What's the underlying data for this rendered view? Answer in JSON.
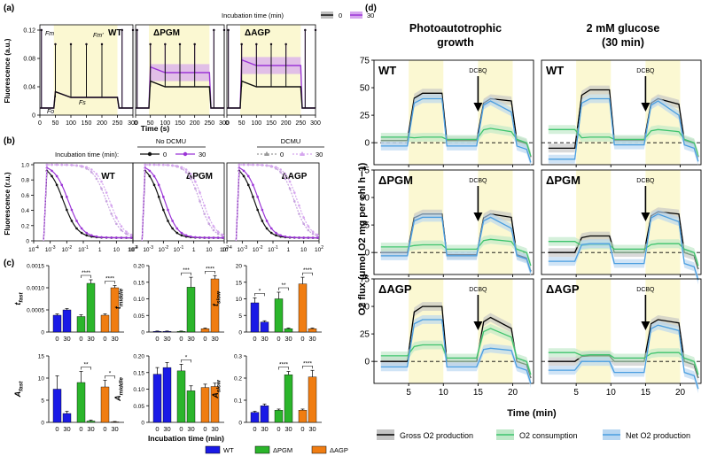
{
  "panel_labels": {
    "a": "(a)",
    "b": "(b)",
    "c": "(c)",
    "d": "(d)"
  },
  "strains": [
    "WT",
    "ΔPGM",
    "ΔAGP"
  ],
  "colors": {
    "black": "#111111",
    "purple": "#9b35d6",
    "purple_light": "#d6a6ef",
    "yellow": "#fbf8d2",
    "gray_band": "#bdbdbd",
    "WT": "#1a1ae6",
    "ΔPGM": "#2bb52b",
    "ΔAGP": "#f07d12",
    "green": "#3ec46d",
    "blue": "#4a9ee0"
  },
  "panel_a": {
    "ylabel": "Fluorescence (a.u.)",
    "xlabel": "Time (s)",
    "yticks": [
      "0",
      "0.04",
      "0.08",
      "0.12"
    ],
    "xticks": [
      "0",
      "50",
      "100",
      "150",
      "200",
      "250",
      "300"
    ],
    "legend_title": "Incubation time (min)",
    "legend_items": [
      "0",
      "30"
    ],
    "annotations": {
      "fm": "Fm",
      "fmp": "Fm′",
      "fo": "Fo",
      "fs": "Fs"
    },
    "chart_data": {
      "type": "line",
      "x_range": [
        0,
        300
      ],
      "y_range": [
        0,
        0.12
      ],
      "light_period": [
        45,
        250
      ],
      "pulse_times": [
        5,
        50,
        100,
        150,
        200,
        265,
        300
      ],
      "series": [
        {
          "name": "0",
          "strain": "WT",
          "fo": 0.01,
          "fm": 0.12,
          "fs": 0.025
        },
        {
          "name": "30",
          "strain": "WT",
          "fo": 0.01,
          "fm": 0.12,
          "fs": 0.025
        },
        {
          "name": "0",
          "strain": "ΔPGM",
          "fo": 0.01,
          "fm": 0.12,
          "fs": 0.04
        },
        {
          "name": "30",
          "strain": "ΔPGM",
          "fo": 0.01,
          "fm": 0.12,
          "fs": 0.06
        },
        {
          "name": "0",
          "strain": "ΔAGP",
          "fo": 0.01,
          "fm": 0.12,
          "fs": 0.04
        },
        {
          "name": "30",
          "strain": "ΔAGP",
          "fo": 0.01,
          "fm": 0.12,
          "fs": 0.07
        }
      ]
    }
  },
  "panel_b": {
    "ylabel": "Fluorescence (r.u.)",
    "yticks": [
      "0",
      "0.2",
      "0.4",
      "0.6",
      "0.8",
      "1.0"
    ],
    "xticks": [
      "10-4",
      "10-3",
      "10-2",
      "10-1",
      "1",
      "10",
      "102"
    ],
    "legend_title": "Incubation time (min):",
    "legend_group1": "No DCMU",
    "legend_group2": "DCMU",
    "legend_items": [
      "0",
      "30",
      "0",
      "30"
    ],
    "chart_data": {
      "type": "line",
      "x_scale": "log",
      "x_range_log10": [
        -4,
        2
      ],
      "y_range": [
        0,
        1
      ],
      "series": [
        {
          "name": "No DCMU 0",
          "half_time_log10": -2.2
        },
        {
          "name": "No DCMU 30",
          "half_time_log10": -1.9
        },
        {
          "name": "DCMU 0",
          "half_time_log10": 0.4
        },
        {
          "name": "DCMU 30",
          "half_time_log10": 0.6
        }
      ]
    }
  },
  "panel_c": {
    "xlabel": "Incubation time (min)",
    "ticks": [
      "0",
      "30"
    ],
    "legend_items": [
      "WT",
      "ΔPGM",
      "ΔAGP"
    ],
    "chart_data": [
      {
        "type": "bar",
        "ylabel": "tfast (s)",
        "ylab_main": "t",
        "ylab_sub": "fast",
        "ylim": [
          0,
          0.0015
        ],
        "yticks": [
          "0",
          "0.0005",
          "0.0010",
          "0.0015"
        ],
        "values": [
          0.00038,
          0.0005,
          0.00035,
          0.0011,
          0.00038,
          0.001
        ],
        "errors": [
          3e-05,
          3e-05,
          4e-05,
          8e-05,
          3e-05,
          5e-05
        ],
        "sig": [
          {
            "pair": 1,
            "label": "****"
          },
          {
            "pair": 2,
            "label": "****"
          }
        ]
      },
      {
        "type": "bar",
        "ylabel": "tmiddle (s)",
        "ylab_main": "t",
        "ylab_sub": "middle",
        "ylim": [
          0,
          0.2
        ],
        "yticks": [
          "0",
          "0.05",
          "0.10",
          "0.15",
          "0.20"
        ],
        "values": [
          0.002,
          0.002,
          0.002,
          0.135,
          0.01,
          0.16
        ],
        "errors": [
          0.001,
          0.001,
          0.001,
          0.03,
          0.002,
          0.01
        ],
        "sig": [
          {
            "pair": 1,
            "label": "***"
          },
          {
            "pair": 2,
            "label": "****"
          }
        ]
      },
      {
        "type": "bar",
        "ylabel": "tslow (s)",
        "ylab_main": "t",
        "ylab_sub": "slow",
        "ylim": [
          0,
          20
        ],
        "yticks": [
          "0",
          "5",
          "10",
          "15",
          "20"
        ],
        "values": [
          8.8,
          3.0,
          10.0,
          1.0,
          14.5,
          1.0
        ],
        "errors": [
          1.5,
          0.4,
          2.0,
          0.2,
          2.0,
          0.2
        ],
        "sig": [
          {
            "pair": 0,
            "label": "*"
          },
          {
            "pair": 1,
            "label": "**"
          },
          {
            "pair": 2,
            "label": "****"
          }
        ]
      },
      {
        "type": "bar",
        "ylabel": "Afast (s)",
        "ylab_main": "A",
        "ylab_sub": "fast",
        "ylim": [
          0,
          15
        ],
        "yticks": [
          "0",
          "5",
          "10",
          "15"
        ],
        "values": [
          7.5,
          2.0,
          9.0,
          0.3,
          8.0,
          0.1
        ],
        "errors": [
          3.0,
          0.5,
          2.5,
          0.2,
          1.5,
          0.1
        ],
        "sig": [
          {
            "pair": 1,
            "label": "**"
          },
          {
            "pair": 2,
            "label": "*"
          }
        ]
      },
      {
        "type": "bar",
        "ylabel": "Amiddle (s)",
        "ylab_main": "A",
        "ylab_sub": "middle",
        "ylim": [
          0,
          0.2
        ],
        "yticks": [
          "0",
          "0.05",
          "0.10",
          "0.15",
          "0.20"
        ],
        "values": [
          0.145,
          0.165,
          0.155,
          0.095,
          0.105,
          0.108
        ],
        "errors": [
          0.02,
          0.015,
          0.02,
          0.015,
          0.01,
          0.01
        ],
        "sig": [
          {
            "pair": 1,
            "label": "*"
          }
        ]
      },
      {
        "type": "bar",
        "ylabel": "Aslow (s)",
        "ylab_main": "A",
        "ylab_sub": "slow",
        "ylim": [
          0,
          0.3
        ],
        "yticks": [
          "0",
          "0.1",
          "0.2",
          "0.3"
        ],
        "values": [
          0.045,
          0.075,
          0.055,
          0.215,
          0.055,
          0.205
        ],
        "errors": [
          0.005,
          0.008,
          0.005,
          0.015,
          0.005,
          0.03
        ],
        "sig": [
          {
            "pair": 1,
            "label": "****"
          },
          {
            "pair": 2,
            "label": "****"
          }
        ]
      }
    ]
  },
  "panel_d": {
    "col_titles": [
      [
        "Photoautotrophic",
        "growth"
      ],
      [
        "2 mM glucose",
        "(30 min)"
      ]
    ],
    "ylabel": "O2 flux (μmol O2 mg per chl h−1)",
    "xlabel": "Time (min)",
    "xticks": [
      "5",
      "10",
      "15",
      "20"
    ],
    "yticks": [
      "0",
      "25",
      "50",
      "75"
    ],
    "dcbq": "DCBQ",
    "legend_items": [
      "Gross O2 production",
      "O2 consumption",
      "Net O2 production"
    ],
    "chart_data": {
      "type": "line",
      "x_range": [
        0,
        23
      ],
      "y_range": [
        -20,
        75
      ],
      "light_periods": [
        [
          5,
          10
        ],
        [
          15,
          20
        ]
      ],
      "dcbq_time": 15,
      "panels": [
        {
          "strain": "WT",
          "condition": "Photoautotrophic growth",
          "gross": [
            2,
            45,
            2,
            40,
            38
          ],
          "consumption": [
            5,
            5,
            3,
            13,
            10
          ],
          "net": [
            -3,
            40,
            -3,
            38,
            28
          ]
        },
        {
          "strain": "WT",
          "condition": "2 mM glucose",
          "gross": [
            -5,
            48,
            2,
            40,
            35
          ],
          "consumption": [
            12,
            5,
            3,
            12,
            10
          ],
          "net": [
            -15,
            40,
            -2,
            38,
            25
          ]
        },
        {
          "strain": "ΔPGM",
          "condition": "Photoautotrophic growth",
          "gross": [
            0,
            35,
            -2,
            35,
            32
          ],
          "consumption": [
            5,
            7,
            3,
            12,
            10
          ],
          "net": [
            -3,
            32,
            -3,
            32,
            22
          ]
        },
        {
          "strain": "ΔPGM",
          "condition": "2 mM glucose",
          "gross": [
            0,
            15,
            0,
            37,
            35
          ],
          "consumption": [
            10,
            7,
            3,
            8,
            8
          ],
          "net": [
            -8,
            8,
            -10,
            35,
            28
          ]
        },
        {
          "strain": "ΔAGP",
          "condition": "Photoautotrophic growth",
          "gross": [
            0,
            50,
            0,
            40,
            30
          ],
          "consumption": [
            5,
            15,
            3,
            30,
            22
          ],
          "net": [
            -5,
            38,
            -5,
            12,
            10
          ]
        },
        {
          "strain": "ΔAGP",
          "condition": "2 mM glucose",
          "gross": [
            0,
            5,
            0,
            38,
            35
          ],
          "consumption": [
            8,
            6,
            3,
            8,
            8
          ],
          "net": [
            -8,
            0,
            -10,
            33,
            28
          ]
        }
      ]
    }
  }
}
